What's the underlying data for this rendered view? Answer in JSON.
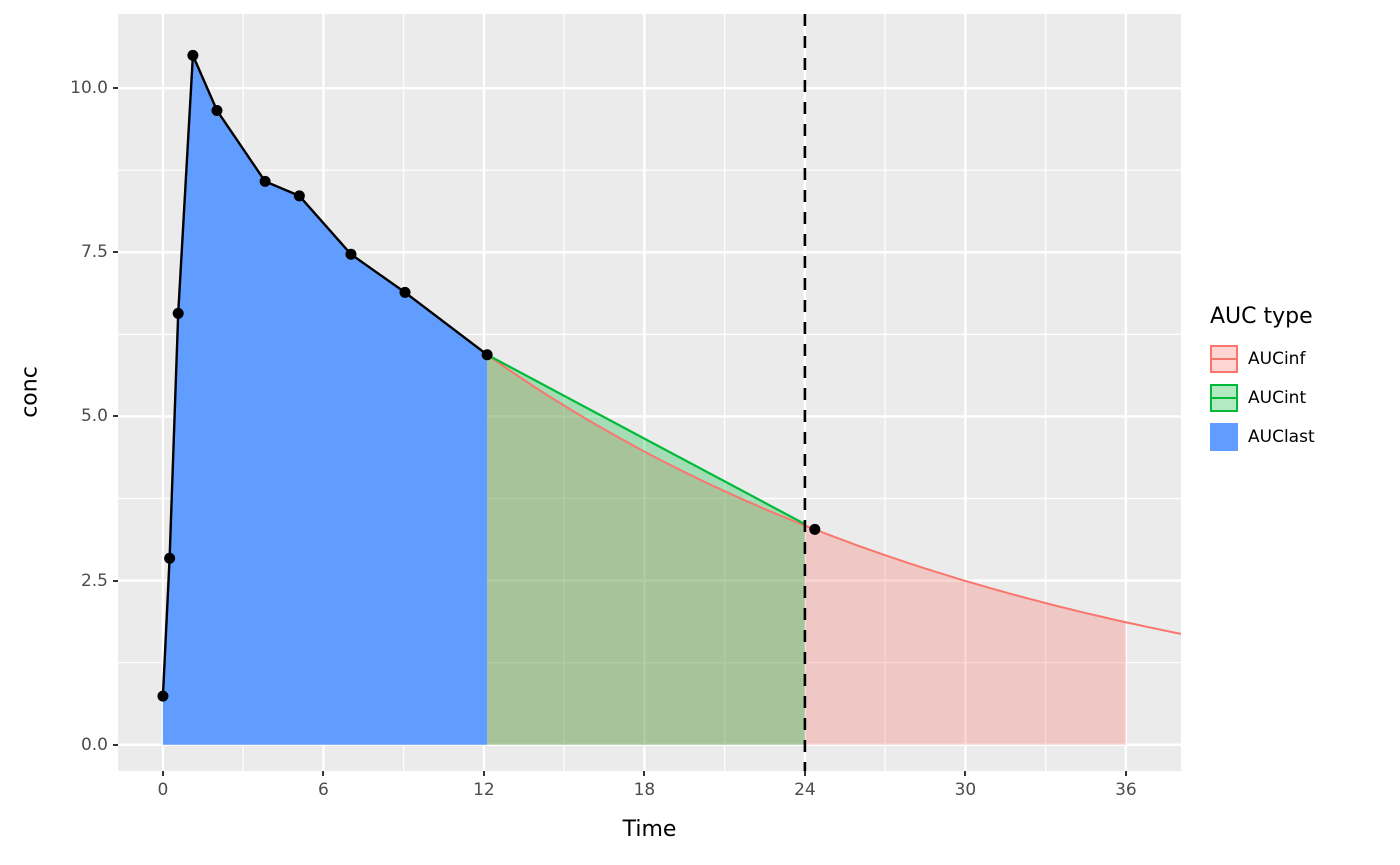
{
  "chart_data": {
    "type": "area",
    "title": "",
    "xlabel": "Time",
    "ylabel": "conc",
    "xlim": [
      -1.68,
      38.06
    ],
    "ylim": [
      -0.4,
      11.13
    ],
    "x_ticks": [
      0,
      6,
      12,
      18,
      24,
      30,
      36
    ],
    "x_tick_labels": [
      "0",
      "6",
      "12",
      "18",
      "24",
      "30",
      "36"
    ],
    "x_minor_ticks": [
      3,
      9,
      15,
      21,
      27,
      33
    ],
    "y_ticks": [
      0,
      2.5,
      5,
      7.5,
      10
    ],
    "y_tick_labels": [
      "0.0",
      "2.5",
      "5.0",
      "7.5",
      "10.0"
    ],
    "y_minor_ticks": [
      1.25,
      3.75,
      6.25,
      8.75
    ],
    "grid": "white major and minor gridlines on gray panel",
    "panel_background": "#EBEBEB",
    "observed": {
      "time": [
        0,
        0.25,
        0.57,
        1.12,
        2.02,
        3.82,
        5.1,
        7.03,
        9.05,
        12.12,
        24.37
      ],
      "conc": [
        0.74,
        2.84,
        6.57,
        10.5,
        9.66,
        8.58,
        8.36,
        7.47,
        6.89,
        5.94,
        3.28
      ],
      "line_through_first_n": 10,
      "point_color": "#000000",
      "line_color": "#000000"
    },
    "auclast_region": {
      "label": "AUClast",
      "from": 0,
      "to": 12.12,
      "fill": "#619CFF"
    },
    "aucint_region": {
      "label": "AUCint",
      "from": 12.12,
      "to": 24,
      "line_x": [
        12.12,
        24
      ],
      "line_y": [
        5.94,
        3.36
      ],
      "line_color": "#00BA38",
      "fill": "rgba(0,186,56,0.3)"
    },
    "aucinf_region": {
      "label": "AUCinf",
      "from": 12.12,
      "fill_to": 36,
      "line_to": 38.06,
      "start_conc": 5.94,
      "lambda_z": 0.0485,
      "line_color": "#F8766D",
      "fill": "rgba(248,118,109,0.3)"
    },
    "reference_line": {
      "x": 24,
      "style": "dashed",
      "color": "#000000"
    },
    "legend": {
      "title": "AUC type",
      "items": [
        {
          "label": "AUCinf",
          "fill": "#FDD6D3",
          "border": "#F8766D",
          "line": "#F8766D"
        },
        {
          "label": "AUCint",
          "fill": "#B3EAC3",
          "border": "#00BA38",
          "line": "#00BA38"
        },
        {
          "label": "AUClast",
          "fill": "#619CFF",
          "border": "#619CFF",
          "line": ""
        }
      ]
    }
  }
}
